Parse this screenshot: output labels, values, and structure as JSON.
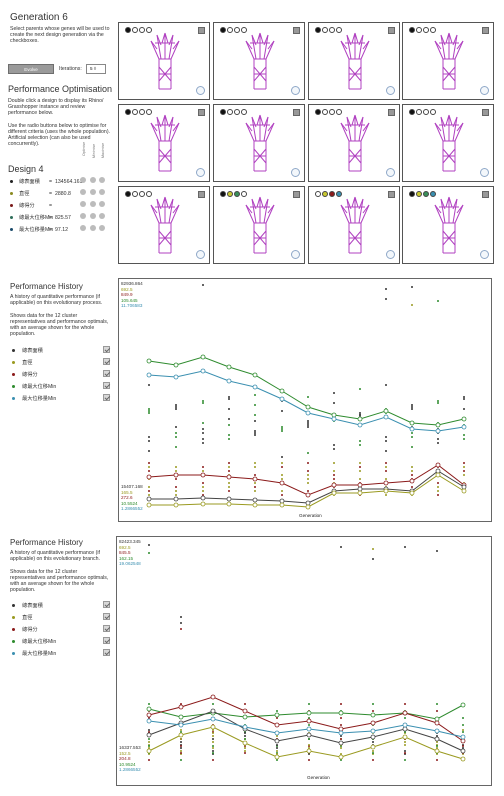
{
  "top": {
    "generation_title": "Generation 6",
    "generation_desc": "Select parents whose genes will be used to create the next design generation via the checkboxes.",
    "evolve_button": "Evolve",
    "iterations_label": "Iterations:",
    "iterations_value": "5 ◊",
    "perf_opt_title": "Performance Optimisation",
    "perf_opt_desc": "Double click a design to display its Rhino/ Grasshopper instance and review performance below.\n\nUse the radio buttons below to optimise for different criteria (uses the whole population). Artificial selection (can also be used concurrently).",
    "design_title": "Design 4",
    "col_headers": [
      "Optimise",
      "Minimise",
      "Maximise"
    ],
    "metrics": [
      {
        "name": "總表面積",
        "sep": "=",
        "value": "134564.161",
        "color": "#222222"
      },
      {
        "name": "直徑",
        "sep": "=",
        "value": "2880.8",
        "color": "#8a8a20"
      },
      {
        "name": "總得分",
        "sep": "=",
        "value": "",
        "color": "#7a1a1a"
      },
      {
        "name": "總最大位移Min",
        "sep": "=",
        "value": "825.57",
        "color": "#2e6e5a"
      },
      {
        "name": "最大位移量Min",
        "sep": "=",
        "value": "97.12",
        "color": "#1a4a6a"
      }
    ]
  },
  "colors": {
    "accent_magenta": "#b040c0",
    "green_series": "#2e8b2e",
    "blue_series": "#3a8fb0",
    "red_series": "#8b1a1a",
    "gray_series": "#444444",
    "olive_series": "#9a9a20"
  },
  "history1": {
    "title": "Performance History",
    "desc": "A history of quantitative performance (if applicable) on this evolutionary process.\n\nShows data for the 12 cluster representatives and performance optimals, with an average shown for the whole population.",
    "legend": [
      {
        "label": "總表面積",
        "color": "#333333"
      },
      {
        "label": "直徑",
        "color": "#9a9a20"
      },
      {
        "label": "總得分",
        "color": "#8b1a1a"
      },
      {
        "label": "總最大位移Min",
        "color": "#2e8b2e"
      },
      {
        "label": "最大位移量Min",
        "color": "#3a8fb0"
      }
    ],
    "axis_top": [
      "82936.864",
      "692.5",
      "849.9",
      "105.645",
      "11.706583"
    ],
    "axis_bottom": [
      "15407.168",
      "165.5",
      "272.6",
      "10.5524",
      "1.2866552"
    ],
    "xlabel": "Generation"
  },
  "history2": {
    "title": "Performance History",
    "desc": "A history of quantitative performance (if applicable) on this evolutionary branch.\n\nShows data for the 12 cluster representatives and performance optimals, with an average shown for the whole population.",
    "legend": [
      {
        "label": "總表面積",
        "color": "#333333"
      },
      {
        "label": "直徑",
        "color": "#9a9a20"
      },
      {
        "label": "總得分",
        "color": "#8b1a1a"
      },
      {
        "label": "總最大位移Min",
        "color": "#2e8b2e"
      },
      {
        "label": "最大位移量Min",
        "color": "#3a8fb0"
      }
    ],
    "axis_top": [
      "82423.345",
      "692.5",
      "845.5",
      "162.15",
      "19.062548"
    ],
    "axis_bottom": [
      "16337.553",
      "152.5",
      "204.8",
      "10.9524",
      "1.2866552"
    ],
    "xlabel": "Generation"
  }
}
